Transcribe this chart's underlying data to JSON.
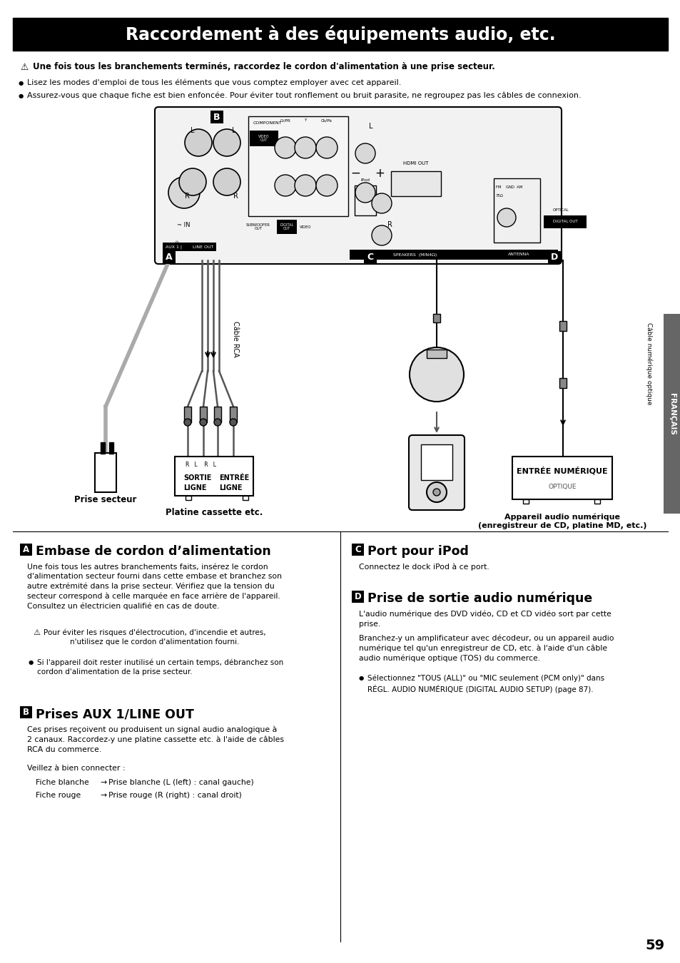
{
  "title": "Raccordement à des équipements audio, etc.",
  "bg_color": "#ffffff",
  "title_bg": "#000000",
  "title_color": "#ffffff",
  "warning_line": "Une fois tous les branchements terminés, raccordez le cordon d'alimentation à une prise secteur.",
  "bullet1": "Lisez les modes d'emploi de tous les éléments que vous comptez employer avec cet appareil.",
  "bullet2": "Assurez-vous que chaque fiche est bien enfoncée. Pour éviter tout ronflement ou bruit parasite, ne regroupez pas les câbles de connexion.",
  "sec_A_title": "Embase de cordon d’alimentation",
  "sec_A_p1": "Une fois tous les autres branchements faits, insérez le cordon\nd'alimentation secteur fourni dans cette embase et branchez son\nautre extrémité dans la prise secteur. Vérifiez que la tension du\nsecteur correspond à celle marquée en face arrière de l'appareil.\nConsultez un électricien qualifié en cas de doute.",
  "sec_A_warn": "Pour éviter les risques d'électrocution, d'incendie et autres,\nn'utilisez que le cordon d'alimentation fourni.",
  "sec_A_bullet": "Si l'appareil doit rester inutilisé un certain temps, débranchez son\ncordon d'alimentation de la prise secteur.",
  "sec_B_title": "Prises AUX 1/LINE OUT",
  "sec_B_p1": "Ces prises reçoivent ou produisent un signal audio analogique à\n2 canaux. Raccordez-y une platine cassette etc. à l'aide de câbles\nRCA du commerce.",
  "sec_B_p2": "Veillez à bien connecter :",
  "sec_B_row1": [
    "Fiche blanche",
    "→",
    "Prise blanche (L (left) : canal gauche)"
  ],
  "sec_B_row2": [
    "Fiche rouge",
    "→",
    "Prise rouge (R (right) : canal droit)"
  ],
  "sec_C_title": "Port pour iPod",
  "sec_C_p1": "Connectez le dock iPod à ce port.",
  "sec_D_title": "Prise de sortie audio numérique",
  "sec_D_p1": "L'audio numérique des DVD vidéo, CD et CD vidéo sort par cette\nprise.",
  "sec_D_p2": "Branchez-y un amplificateur avec décodeur, ou un appareil audio\nnumérique tel qu'un enregistreur de CD, etc. à l'aide d'un câble\naudio numérique optique (TOS) du commerce.",
  "sec_D_bullet": "Sélectionnez \"TOUS (ALL)\" ou \"MIC seulement (PCM only)\" dans\nRÉGL. AUDIO NUMÉRIQUE (DIGITAL AUDIO SETUP) (page 87).",
  "page_num": "59",
  "francais_label": "FRANÇAIS",
  "label_prise": "Prise secteur",
  "label_platine": "Platine cassette etc.",
  "label_cable_rca": "Câble RCA",
  "label_cable_num": "Câble numérique optique",
  "label_appareil": "Appareil audio numérique\n(enregistreur de CD, platine MD, etc.)",
  "label_sortie": "SORTIE\nLIGNE",
  "label_entree": "ENTRÉE\nLIGNE",
  "label_entree_num": "ENTRÉE NUMÉRIQUE",
  "label_optique": "OPTIQUE"
}
